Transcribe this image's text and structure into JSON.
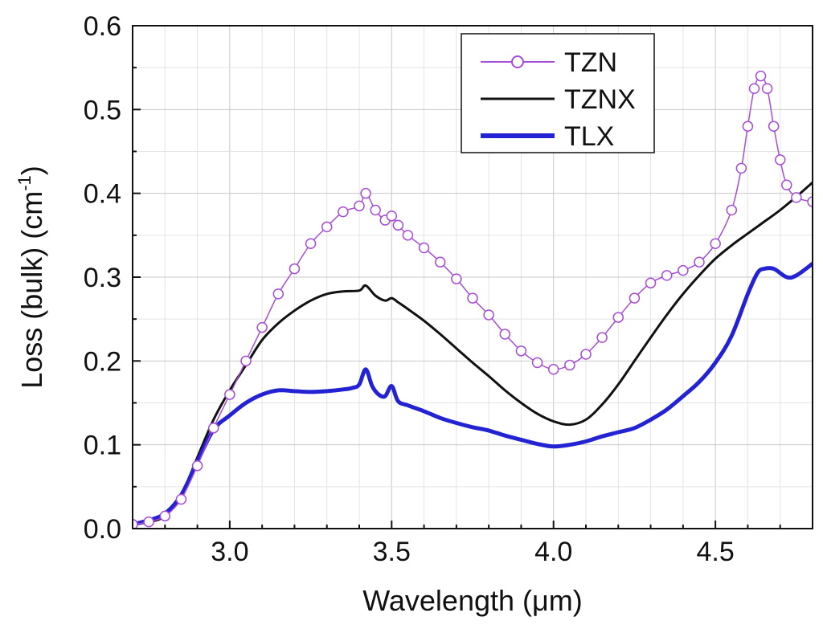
{
  "chart_data": {
    "type": "line",
    "title": "",
    "xlabel": "Wavelength (",
    "xlabel_unit": "μm",
    "xlabel_close": ")",
    "ylabel": "Loss (bulk) (cm",
    "ylabel_sup": "-1",
    "ylabel_close": ")",
    "xlim": [
      2.7,
      4.8
    ],
    "ylim": [
      0.0,
      0.6
    ],
    "grid": true,
    "legend_position": "top-right",
    "x_ticks": [
      {
        "value": 3.0,
        "label": "3.0"
      },
      {
        "value": 3.5,
        "label": "3.5"
      },
      {
        "value": 4.0,
        "label": "4.0"
      },
      {
        "value": 4.5,
        "label": "4.5"
      }
    ],
    "y_ticks": [
      {
        "value": 0.0,
        "label": "0.0"
      },
      {
        "value": 0.1,
        "label": "0.1"
      },
      {
        "value": 0.2,
        "label": "0.2"
      },
      {
        "value": 0.3,
        "label": "0.3"
      },
      {
        "value": 0.4,
        "label": "0.4"
      },
      {
        "value": 0.5,
        "label": "0.5"
      },
      {
        "value": 0.6,
        "label": "0.6"
      }
    ],
    "series": [
      {
        "name": "TZN",
        "color": "#a64dd6",
        "style": "line-open-circles",
        "points": [
          [
            2.7,
            0.005
          ],
          [
            2.75,
            0.008
          ],
          [
            2.8,
            0.015
          ],
          [
            2.85,
            0.035
          ],
          [
            2.9,
            0.075
          ],
          [
            2.95,
            0.12
          ],
          [
            3.0,
            0.16
          ],
          [
            3.05,
            0.2
          ],
          [
            3.1,
            0.24
          ],
          [
            3.15,
            0.28
          ],
          [
            3.2,
            0.31
          ],
          [
            3.25,
            0.34
          ],
          [
            3.3,
            0.36
          ],
          [
            3.35,
            0.378
          ],
          [
            3.4,
            0.385
          ],
          [
            3.42,
            0.4
          ],
          [
            3.45,
            0.38
          ],
          [
            3.48,
            0.368
          ],
          [
            3.5,
            0.373
          ],
          [
            3.52,
            0.362
          ],
          [
            3.55,
            0.35
          ],
          [
            3.6,
            0.335
          ],
          [
            3.65,
            0.318
          ],
          [
            3.7,
            0.298
          ],
          [
            3.75,
            0.275
          ],
          [
            3.8,
            0.255
          ],
          [
            3.85,
            0.232
          ],
          [
            3.9,
            0.212
          ],
          [
            3.95,
            0.198
          ],
          [
            4.0,
            0.19
          ],
          [
            4.05,
            0.195
          ],
          [
            4.1,
            0.208
          ],
          [
            4.15,
            0.228
          ],
          [
            4.2,
            0.252
          ],
          [
            4.25,
            0.275
          ],
          [
            4.3,
            0.293
          ],
          [
            4.35,
            0.302
          ],
          [
            4.4,
            0.308
          ],
          [
            4.45,
            0.318
          ],
          [
            4.5,
            0.34
          ],
          [
            4.55,
            0.38
          ],
          [
            4.58,
            0.43
          ],
          [
            4.6,
            0.48
          ],
          [
            4.62,
            0.525
          ],
          [
            4.64,
            0.54
          ],
          [
            4.66,
            0.525
          ],
          [
            4.68,
            0.48
          ],
          [
            4.7,
            0.44
          ],
          [
            4.72,
            0.41
          ],
          [
            4.75,
            0.395
          ],
          [
            4.8,
            0.39
          ]
        ]
      },
      {
        "name": "TZNX",
        "color": "#111111",
        "style": "line",
        "points": [
          [
            2.7,
            0.005
          ],
          [
            2.75,
            0.008
          ],
          [
            2.8,
            0.015
          ],
          [
            2.85,
            0.04
          ],
          [
            2.9,
            0.085
          ],
          [
            2.95,
            0.13
          ],
          [
            3.0,
            0.165
          ],
          [
            3.05,
            0.195
          ],
          [
            3.1,
            0.225
          ],
          [
            3.15,
            0.245
          ],
          [
            3.2,
            0.26
          ],
          [
            3.25,
            0.272
          ],
          [
            3.3,
            0.28
          ],
          [
            3.35,
            0.283
          ],
          [
            3.4,
            0.284
          ],
          [
            3.42,
            0.29
          ],
          [
            3.45,
            0.278
          ],
          [
            3.48,
            0.272
          ],
          [
            3.5,
            0.275
          ],
          [
            3.52,
            0.27
          ],
          [
            3.55,
            0.262
          ],
          [
            3.6,
            0.248
          ],
          [
            3.65,
            0.232
          ],
          [
            3.7,
            0.215
          ],
          [
            3.75,
            0.198
          ],
          [
            3.8,
            0.182
          ],
          [
            3.85,
            0.165
          ],
          [
            3.9,
            0.15
          ],
          [
            3.95,
            0.137
          ],
          [
            4.0,
            0.128
          ],
          [
            4.05,
            0.124
          ],
          [
            4.1,
            0.13
          ],
          [
            4.15,
            0.148
          ],
          [
            4.2,
            0.172
          ],
          [
            4.25,
            0.2
          ],
          [
            4.3,
            0.228
          ],
          [
            4.35,
            0.255
          ],
          [
            4.4,
            0.28
          ],
          [
            4.45,
            0.302
          ],
          [
            4.5,
            0.322
          ],
          [
            4.55,
            0.338
          ],
          [
            4.6,
            0.352
          ],
          [
            4.65,
            0.366
          ],
          [
            4.7,
            0.38
          ],
          [
            4.75,
            0.396
          ],
          [
            4.8,
            0.413
          ]
        ]
      },
      {
        "name": "TLX",
        "color": "#2323d4",
        "style": "thick-line",
        "points": [
          [
            2.7,
            0.005
          ],
          [
            2.75,
            0.01
          ],
          [
            2.8,
            0.018
          ],
          [
            2.85,
            0.04
          ],
          [
            2.9,
            0.08
          ],
          [
            2.95,
            0.118
          ],
          [
            3.0,
            0.135
          ],
          [
            3.05,
            0.15
          ],
          [
            3.1,
            0.16
          ],
          [
            3.15,
            0.165
          ],
          [
            3.2,
            0.164
          ],
          [
            3.25,
            0.163
          ],
          [
            3.3,
            0.164
          ],
          [
            3.35,
            0.166
          ],
          [
            3.38,
            0.168
          ],
          [
            3.4,
            0.172
          ],
          [
            3.42,
            0.19
          ],
          [
            3.44,
            0.17
          ],
          [
            3.46,
            0.16
          ],
          [
            3.48,
            0.158
          ],
          [
            3.5,
            0.17
          ],
          [
            3.52,
            0.152
          ],
          [
            3.55,
            0.147
          ],
          [
            3.6,
            0.14
          ],
          [
            3.65,
            0.132
          ],
          [
            3.7,
            0.126
          ],
          [
            3.75,
            0.121
          ],
          [
            3.8,
            0.117
          ],
          [
            3.85,
            0.111
          ],
          [
            3.9,
            0.106
          ],
          [
            3.95,
            0.101
          ],
          [
            4.0,
            0.098
          ],
          [
            4.05,
            0.1
          ],
          [
            4.1,
            0.104
          ],
          [
            4.15,
            0.11
          ],
          [
            4.2,
            0.115
          ],
          [
            4.25,
            0.12
          ],
          [
            4.3,
            0.13
          ],
          [
            4.35,
            0.142
          ],
          [
            4.4,
            0.158
          ],
          [
            4.45,
            0.175
          ],
          [
            4.5,
            0.198
          ],
          [
            4.55,
            0.23
          ],
          [
            4.6,
            0.28
          ],
          [
            4.63,
            0.305
          ],
          [
            4.65,
            0.31
          ],
          [
            4.68,
            0.31
          ],
          [
            4.72,
            0.3
          ],
          [
            4.75,
            0.302
          ],
          [
            4.8,
            0.316
          ]
        ]
      }
    ]
  }
}
